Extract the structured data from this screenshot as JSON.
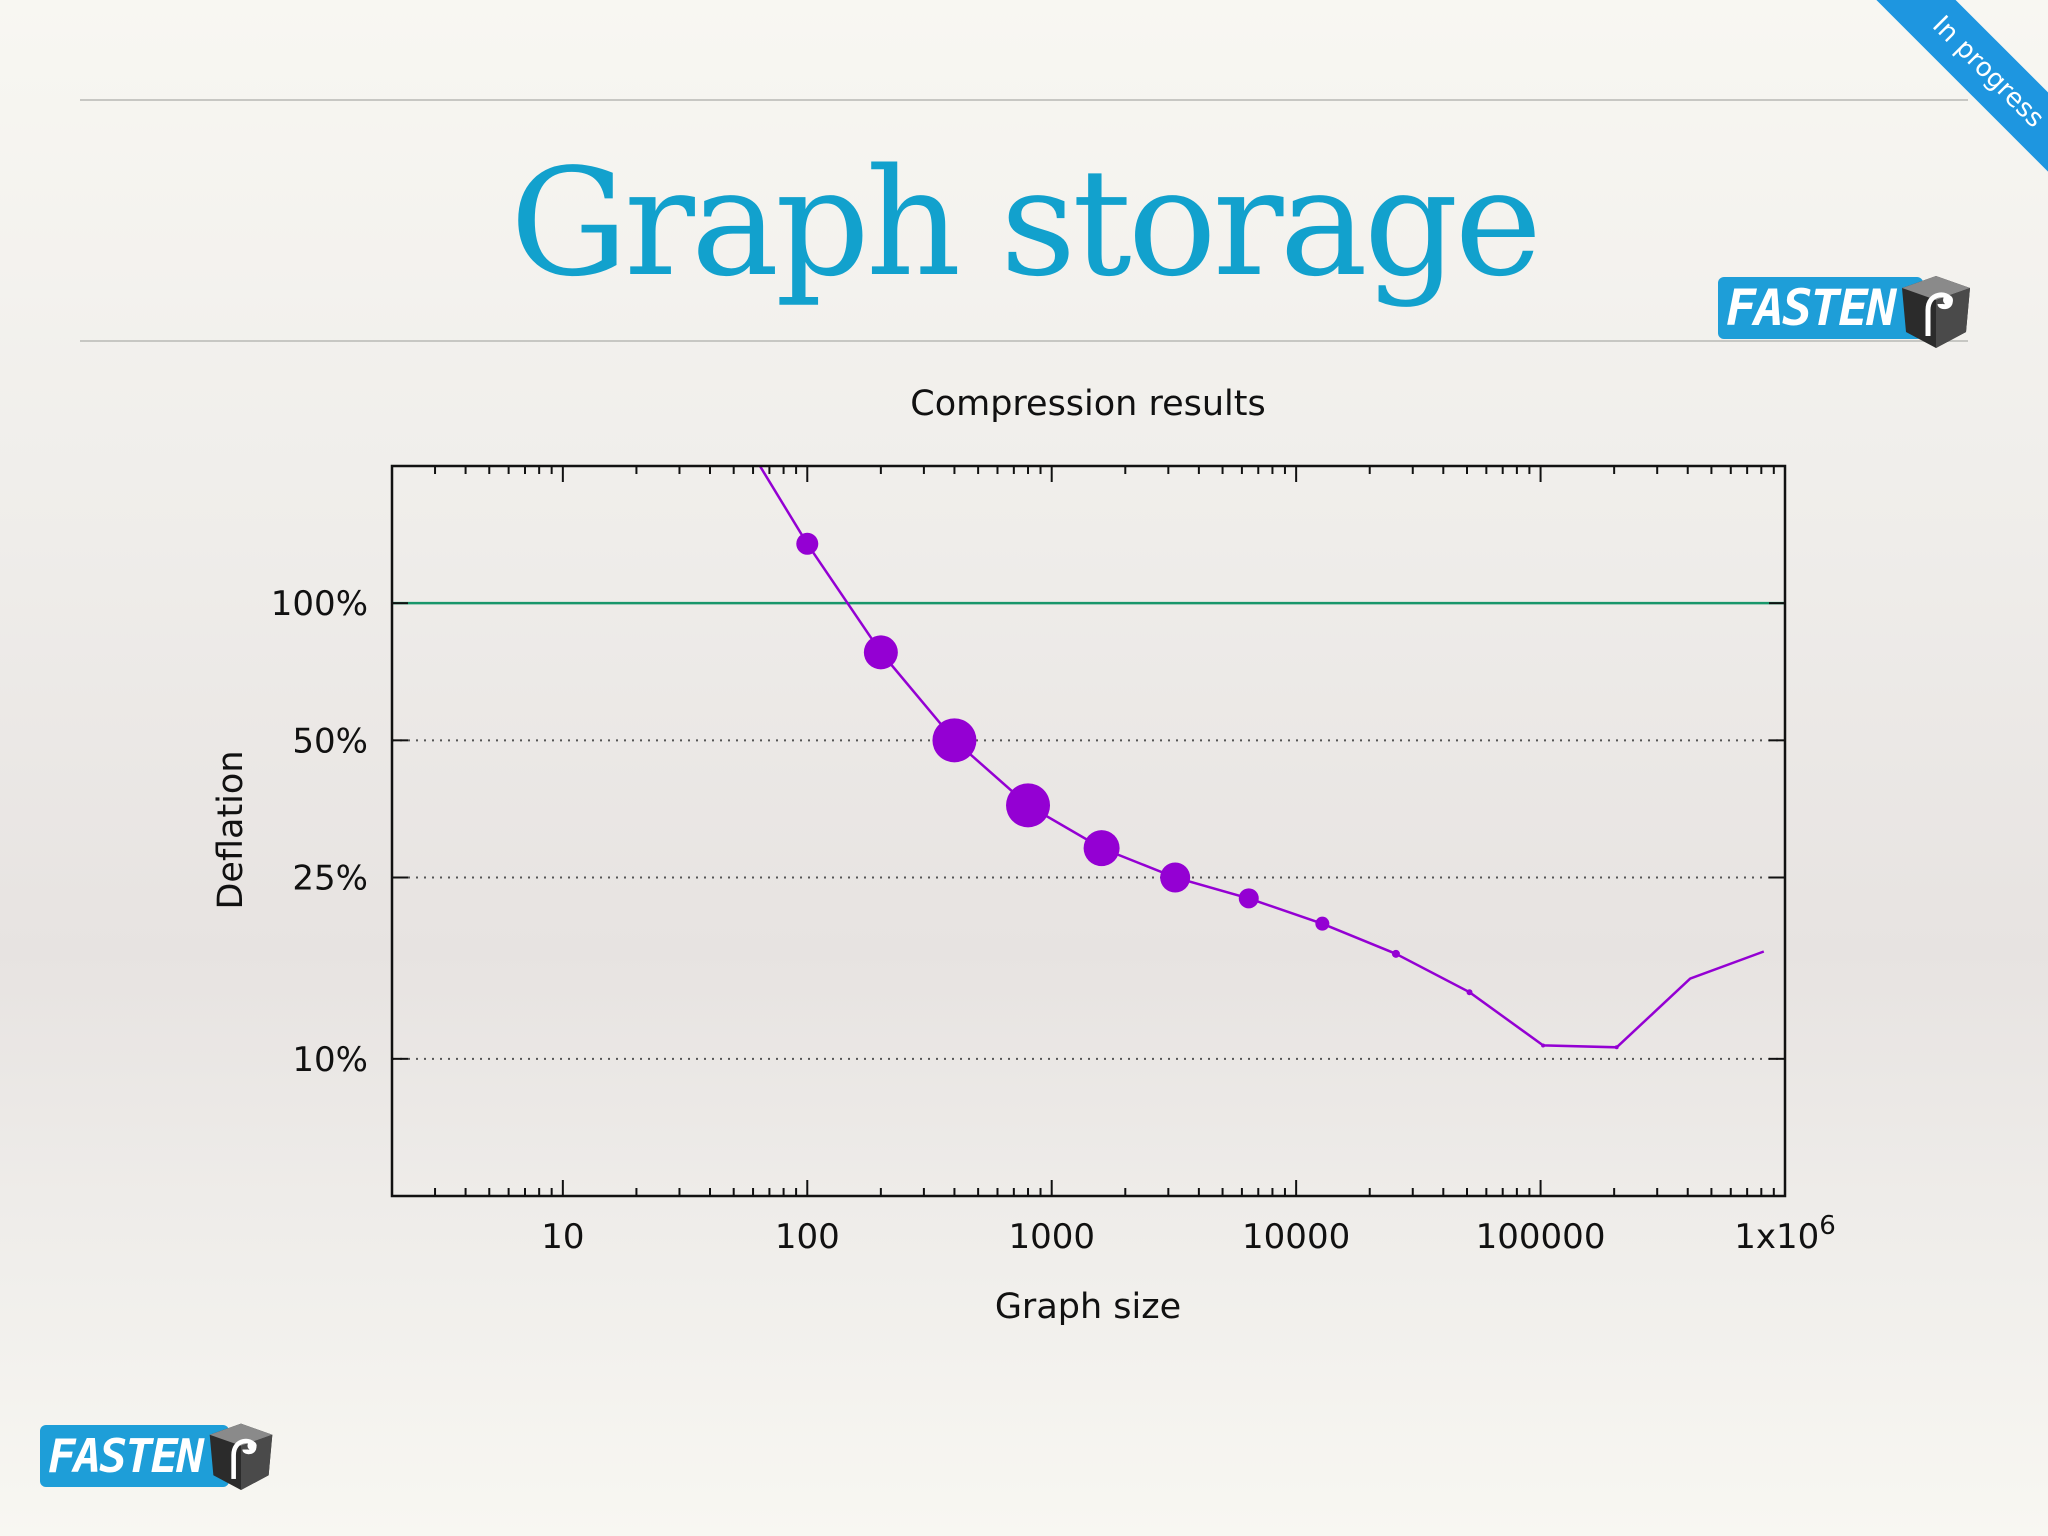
{
  "slide": {
    "title": "Graph storage",
    "status_ribbon": "In progress",
    "logo_text": "FASTEN",
    "colors": {
      "title": "#12a1cd",
      "ribbon": "#1e96e0",
      "logo": "#1e9ed8"
    }
  },
  "chart_data": {
    "type": "line",
    "title": "Compression results",
    "xlabel": "Graph size",
    "ylabel": "Deflation",
    "x_scale": "log",
    "y_scale": "log",
    "xlim": [
      2,
      1000000
    ],
    "ylim": [
      5,
      200
    ],
    "x_ticks": [
      {
        "value": 10,
        "label": "10"
      },
      {
        "value": 100,
        "label": "100"
      },
      {
        "value": 1000,
        "label": "1000"
      },
      {
        "value": 10000,
        "label": "10000"
      },
      {
        "value": 100000,
        "label": "100000"
      },
      {
        "value": 1000000,
        "label": "1x10",
        "sup": "6"
      }
    ],
    "y_ticks": [
      {
        "value": 10,
        "label": "10%"
      },
      {
        "value": 25,
        "label": "25%"
      },
      {
        "value": 50,
        "label": "50%"
      },
      {
        "value": 100,
        "label": "100%"
      }
    ],
    "grid": "horizontal dotted at y ticks",
    "reference_line": {
      "y": 100,
      "color": "#18966a"
    },
    "series": [
      {
        "color": "#9400d3",
        "x": [
          64,
          100,
          200,
          400,
          800,
          1600,
          3200,
          6400,
          12800,
          25600,
          51200,
          102400,
          204800,
          409600,
          819200
        ],
        "y": [
          200,
          135,
          78,
          50,
          36,
          29,
          25,
          22.5,
          19.8,
          17,
          14,
          10.7,
          10.6,
          15,
          17.2
        ],
        "marker_size": [
          0,
          11,
          17,
          22,
          22,
          18,
          15,
          10,
          7,
          4,
          3,
          2,
          2,
          0,
          0
        ]
      }
    ]
  }
}
